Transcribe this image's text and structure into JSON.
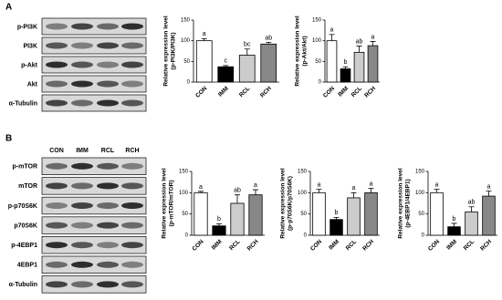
{
  "panel_labels": [
    "A",
    "B"
  ],
  "blots": [
    {
      "lanes": null,
      "rows": [
        "p-PI3K",
        "PI3K",
        "p-Akt",
        "Akt",
        "α-Tubulin"
      ]
    },
    {
      "lanes": [
        "CON",
        "IMM",
        "RCL",
        "RCH"
      ],
      "rows": [
        "p-mTOR",
        "mTOR",
        "p-p70S6K",
        "p70S6K",
        "p-4EBP1",
        "4EBP1",
        "α-Tubulin"
      ]
    }
  ],
  "chart_data": [
    {
      "type": "bar",
      "ylabel": [
        "Relative expression level",
        "(p-PI3K/PI3K)"
      ],
      "categories": [
        "CON",
        "IMM",
        "RCL",
        "RCH"
      ],
      "series": [
        {
          "values": [
            100,
            37,
            65,
            92
          ],
          "errors": [
            5,
            3,
            15,
            4
          ],
          "annotations": [
            "a",
            "c",
            "bc",
            "ab"
          ],
          "colors": [
            "#ffffff",
            "#000000",
            "#cccccc",
            "#888888"
          ]
        }
      ],
      "ylim": [
        0,
        150
      ],
      "yticks": [
        0,
        50,
        100,
        150
      ]
    },
    {
      "type": "bar",
      "ylabel": [
        "Relative expression level",
        "(p-Akt/Akt)"
      ],
      "categories": [
        "CON",
        "IMM",
        "RCL",
        "RCH"
      ],
      "series": [
        {
          "values": [
            100,
            32,
            72,
            88
          ],
          "errors": [
            15,
            5,
            15,
            10
          ],
          "annotations": [
            "a",
            "b",
            "ab",
            "a"
          ],
          "colors": [
            "#ffffff",
            "#000000",
            "#cccccc",
            "#888888"
          ]
        }
      ],
      "ylim": [
        0,
        150
      ],
      "yticks": [
        0,
        50,
        100,
        150
      ]
    },
    {
      "type": "bar",
      "ylabel": [
        "Relative expression level",
        "(p-mTOR/mTOR)"
      ],
      "categories": [
        "CON",
        "IMM",
        "RCL",
        "RCH"
      ],
      "series": [
        {
          "values": [
            100,
            22,
            75,
            95
          ],
          "errors": [
            3,
            5,
            20,
            12
          ],
          "annotations": [
            "a",
            "b",
            "ab",
            "a"
          ],
          "colors": [
            "#ffffff",
            "#000000",
            "#cccccc",
            "#888888"
          ]
        }
      ],
      "ylim": [
        0,
        150
      ],
      "yticks": [
        0,
        50,
        100,
        150
      ]
    },
    {
      "type": "bar",
      "ylabel": [
        "Relative expression level",
        "(p-p70S6K/p70S6K)"
      ],
      "categories": [
        "CON",
        "IMM",
        "RCL",
        "RCH"
      ],
      "series": [
        {
          "values": [
            100,
            37,
            88,
            100
          ],
          "errors": [
            8,
            5,
            12,
            10
          ],
          "annotations": [
            "a",
            "b",
            "a",
            "a"
          ],
          "colors": [
            "#ffffff",
            "#000000",
            "#cccccc",
            "#888888"
          ]
        }
      ],
      "ylim": [
        0,
        150
      ],
      "yticks": [
        0,
        50,
        100,
        150
      ]
    },
    {
      "type": "bar",
      "ylabel": [
        "Relative expression level",
        "(p-4EBP1/4EBP1)"
      ],
      "categories": [
        "CON",
        "IMM",
        "RCL",
        "RCH"
      ],
      "series": [
        {
          "values": [
            100,
            20,
            55,
            92
          ],
          "errors": [
            8,
            8,
            12,
            12
          ],
          "annotations": [
            "a",
            "b",
            "ab",
            "a"
          ],
          "colors": [
            "#ffffff",
            "#000000",
            "#cccccc",
            "#888888"
          ]
        }
      ],
      "ylim": [
        0,
        150
      ],
      "yticks": [
        0,
        50,
        100,
        150
      ]
    }
  ]
}
